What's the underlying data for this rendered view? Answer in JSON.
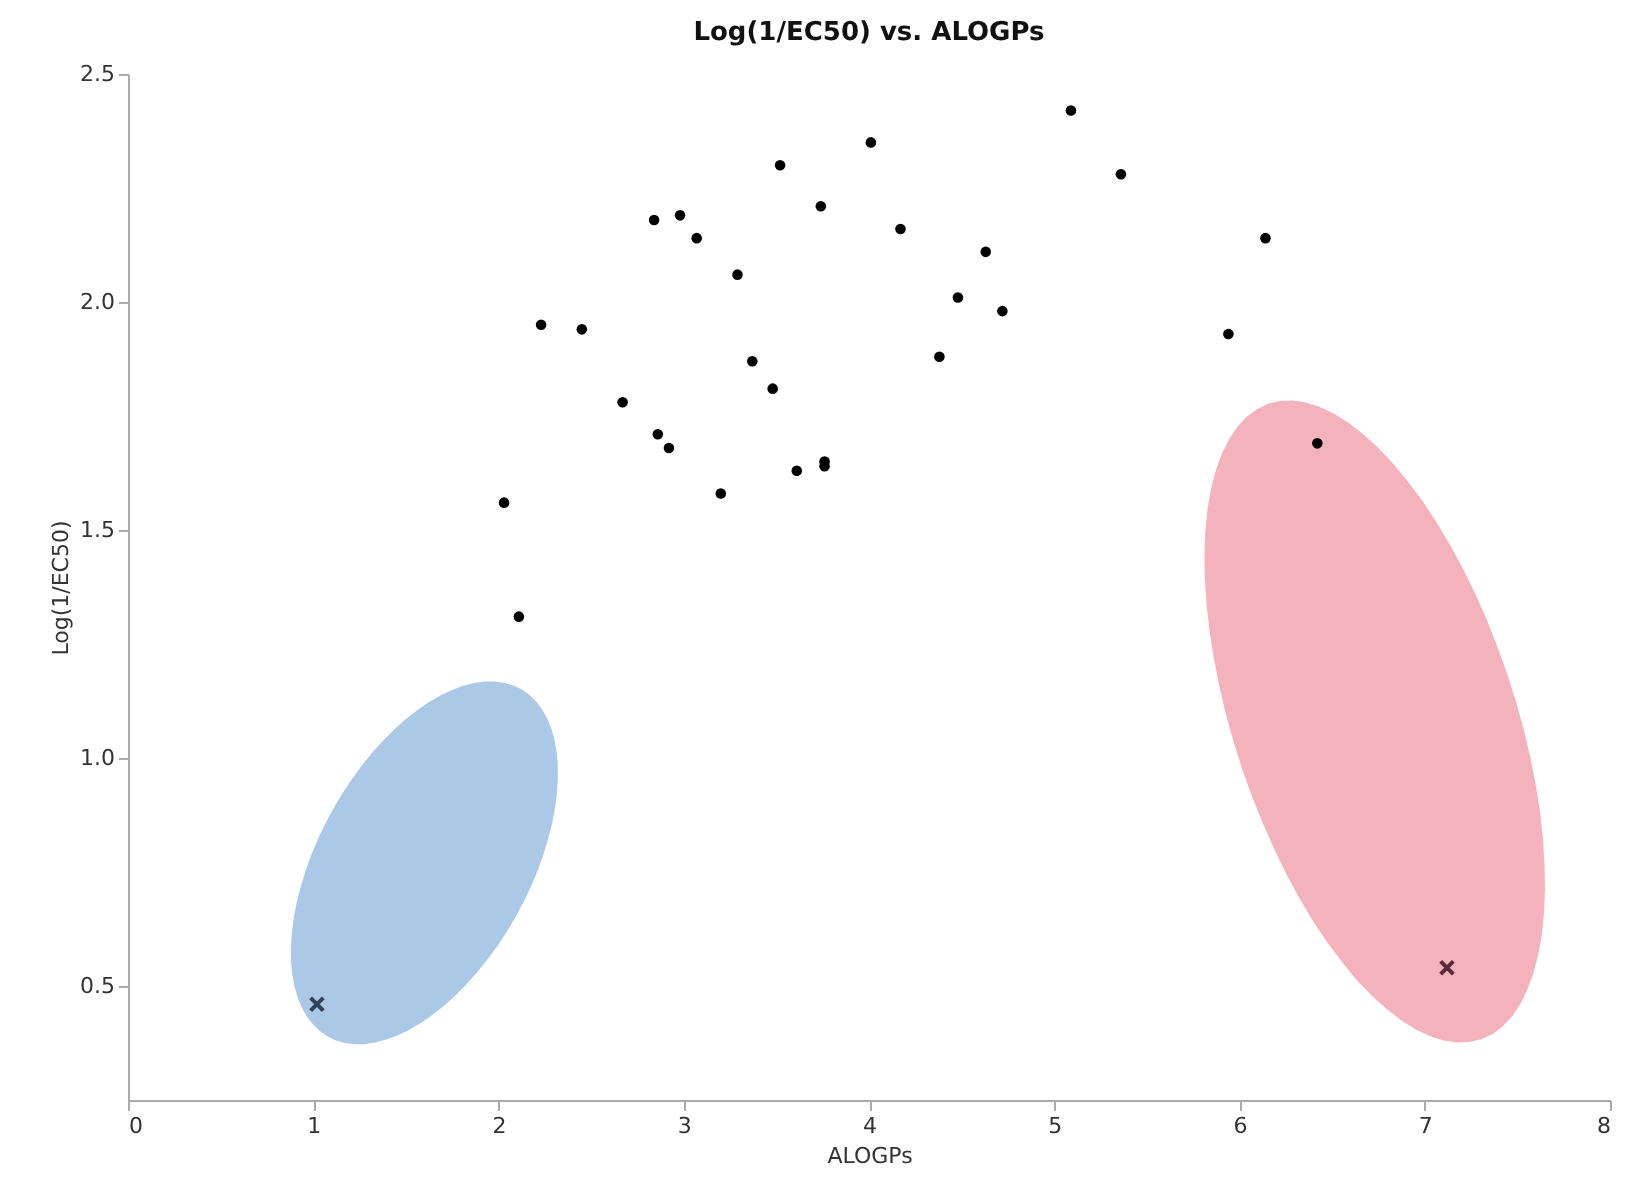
{
  "chart_data": {
    "type": "scatter",
    "title": "Log(1/EC50) vs. ALOGPs",
    "xlabel": "ALOGPs",
    "ylabel": "Log(1/EC50)",
    "xlim": [
      0,
      8
    ],
    "xticks": [
      0,
      1,
      2,
      3,
      4,
      5,
      6,
      7,
      8
    ],
    "ylim": [
      0.25,
      2.5
    ],
    "yticks": [
      0.5,
      {
        "value": 1,
        "label": "1.0"
      },
      1.5,
      {
        "value": 2,
        "label": "2.0"
      },
      2.5
    ],
    "grid": false,
    "series": [
      {
        "color": "#000000",
        "marker": "circle",
        "x": [
          2.03,
          2.11,
          2.23,
          2.45,
          2.67,
          2.84,
          2.86,
          2.92,
          2.98,
          3.07,
          3.2,
          3.29,
          3.37,
          3.48,
          3.52,
          3.61,
          3.74,
          3.76,
          3.76,
          4.01,
          4.17,
          4.38,
          4.48,
          4.63,
          4.72,
          5.09,
          5.36,
          5.94,
          6.14,
          6.42
        ],
        "values": [
          1.56,
          1.31,
          1.95,
          1.94,
          1.78,
          2.18,
          1.71,
          1.68,
          2.19,
          2.14,
          1.58,
          2.06,
          1.87,
          1.81,
          2.3,
          1.63,
          2.21,
          1.65,
          1.64,
          2.35,
          2.16,
          1.88,
          2.01,
          2.11,
          1.98,
          2.42,
          2.28,
          1.93,
          2.14,
          1.69
        ]
      },
      {
        "color": "#2f4259",
        "marker": "cross",
        "x": [
          1.02
        ],
        "values": [
          0.46
        ]
      },
      {
        "color": "#5a2a36",
        "marker": "cross",
        "x": [
          7.12
        ],
        "values": [
          0.54
        ]
      }
    ]
  }
}
